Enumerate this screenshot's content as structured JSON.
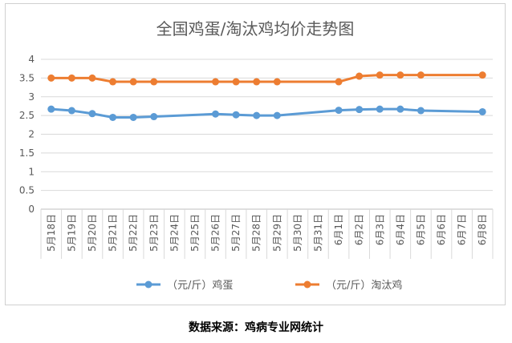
{
  "chart_data": {
    "type": "line",
    "title": "全国鸡蛋/淘汰鸡均价走势图",
    "categories": [
      "5月18日",
      "5月19日",
      "5月20日",
      "5月21日",
      "5月22日",
      "5月23日",
      "5月24日",
      "5月25日",
      "5月26日",
      "5月27日",
      "5月28日",
      "5月29日",
      "5月30日",
      "5月31日",
      "6月1日",
      "6月2日",
      "6月3日",
      "6月4日",
      "6月5日",
      "6月6日",
      "6月7日",
      "6月8日"
    ],
    "series": [
      {
        "name": "（元/斤）鸡蛋",
        "color": "#5b9bd5",
        "values": [
          2.67,
          2.63,
          2.55,
          2.45,
          2.45,
          2.47,
          null,
          null,
          2.54,
          2.52,
          2.5,
          2.5,
          null,
          null,
          2.64,
          2.66,
          2.67,
          2.67,
          2.63,
          null,
          null,
          2.6
        ]
      },
      {
        "name": "（元/斤）淘汰鸡",
        "color": "#ed7d31",
        "values": [
          3.5,
          3.5,
          3.5,
          3.4,
          3.4,
          3.4,
          null,
          null,
          3.4,
          3.4,
          3.4,
          3.4,
          null,
          null,
          3.4,
          3.55,
          3.58,
          3.58,
          3.58,
          null,
          null,
          3.58
        ]
      }
    ],
    "yticks": [
      "0",
      "0.5",
      "1",
      "1.5",
      "2",
      "2.5",
      "3",
      "3.5",
      "4"
    ],
    "ylim": [
      0,
      4
    ],
    "grid": true,
    "legend": "bottom"
  },
  "source_note": "数据来源：鸡病专业网统计"
}
